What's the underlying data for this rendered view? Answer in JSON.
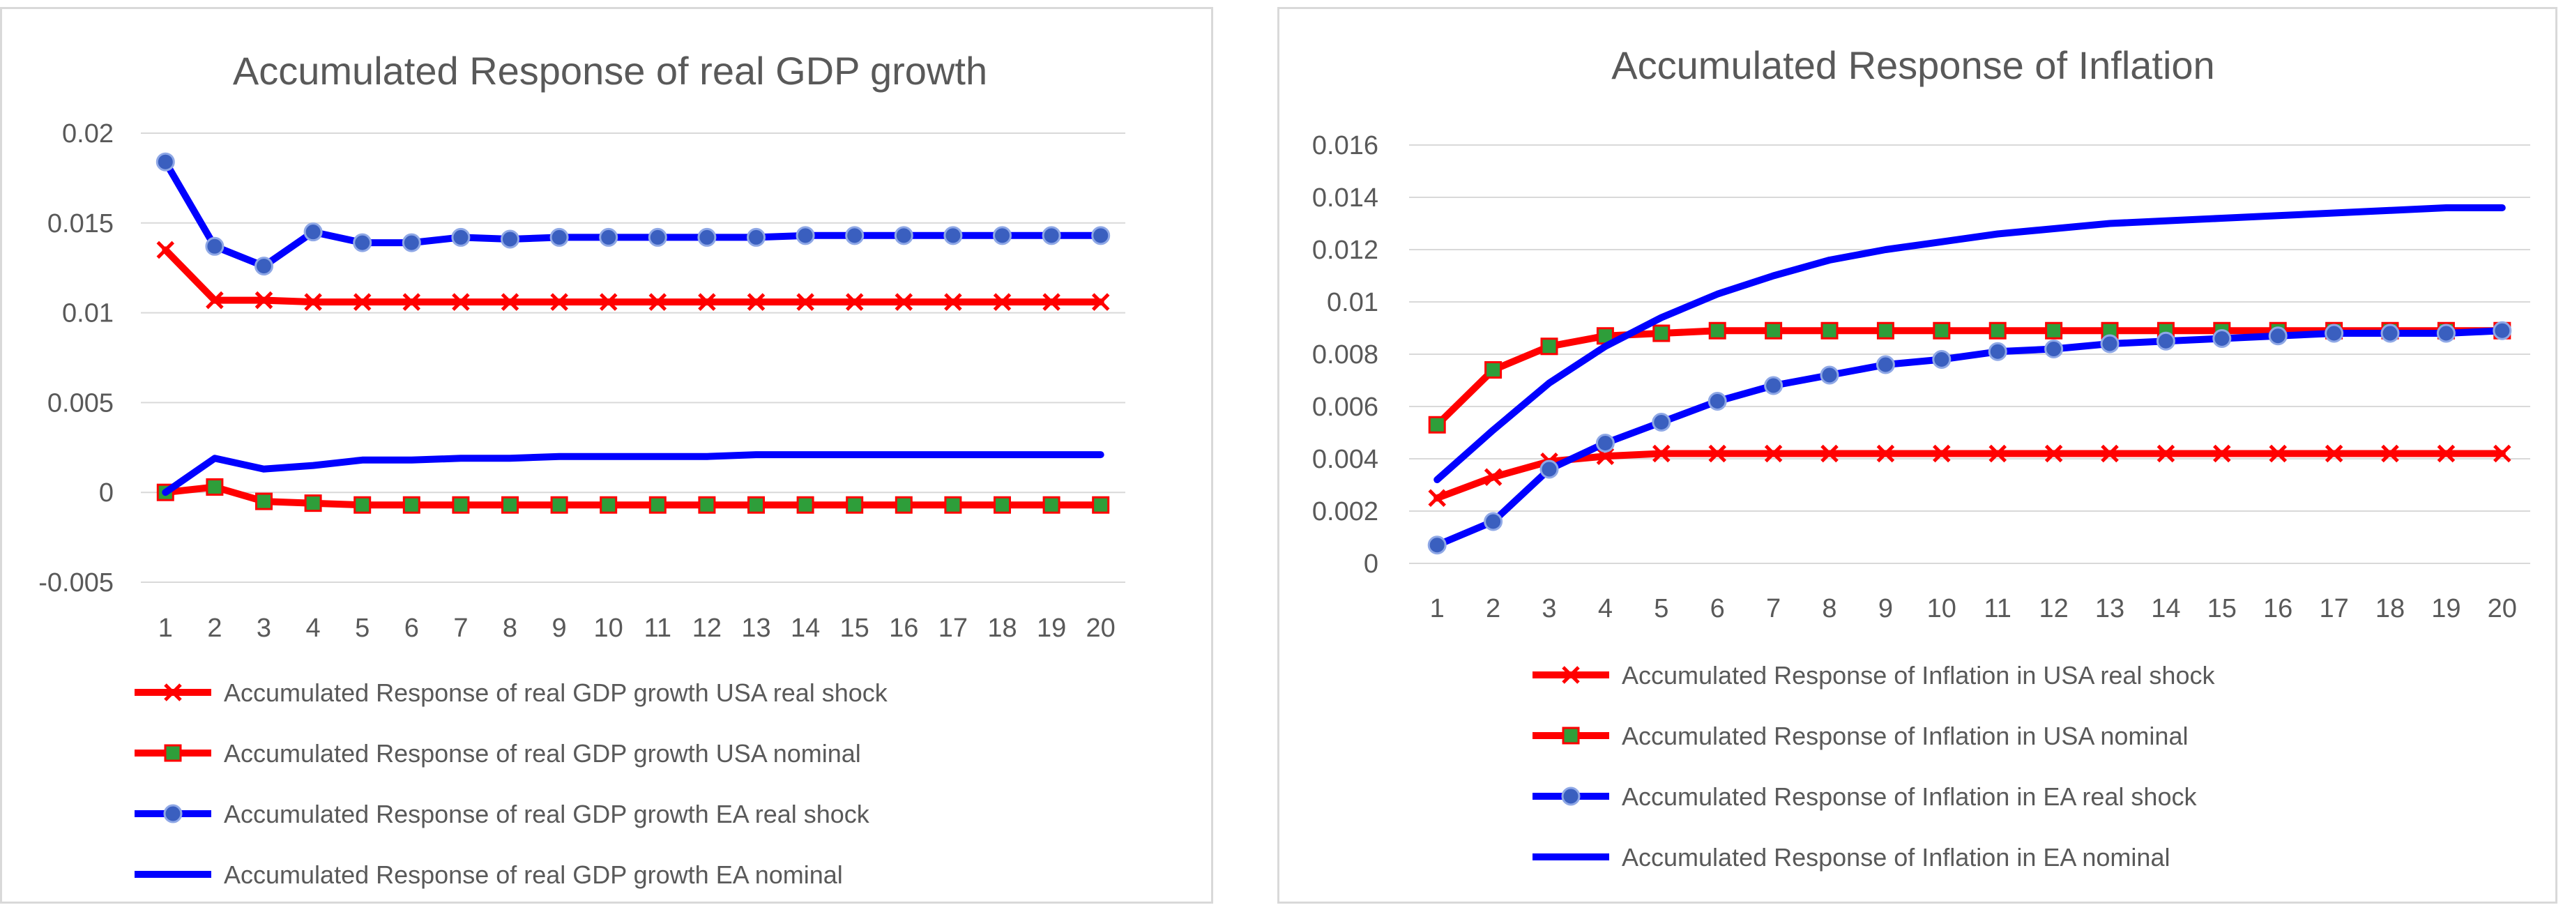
{
  "colors": {
    "red": "#ff0000",
    "blue": "#0000ff",
    "green": "#2e9e3a",
    "grid": "#d9d9d9",
    "text": "#595959"
  },
  "chart_data": [
    {
      "type": "line",
      "title": "Accumulated Response of real GDP growth",
      "x": [
        "1",
        "2",
        "3",
        "4",
        "5",
        "6",
        "7",
        "8",
        "9",
        "10",
        "11",
        "12",
        "13",
        "14",
        "15",
        "16",
        "17",
        "18",
        "19",
        "20"
      ],
      "ylim": [
        -0.005,
        0.02
      ],
      "ytick_values": [
        -0.005,
        0,
        0.005,
        0.01,
        0.015,
        0.02
      ],
      "ytick_labels": [
        "-0.005",
        "0",
        "0.005",
        "0.01",
        "0.015",
        "0.02"
      ],
      "grid": true,
      "legend_position": "bottom",
      "series": [
        {
          "name": "Accumulated Response of real GDP growth USA real shock",
          "color": "#ff0000",
          "marker": "x",
          "values": [
            0.0135,
            0.0107,
            0.0107,
            0.0106,
            0.0106,
            0.0106,
            0.0106,
            0.0106,
            0.0106,
            0.0106,
            0.0106,
            0.0106,
            0.0106,
            0.0106,
            0.0106,
            0.0106,
            0.0106,
            0.0106,
            0.0106,
            0.0106
          ]
        },
        {
          "name": "Accumulated Response of real GDP growth USA nominal",
          "color": "#ff0000",
          "marker": "square",
          "values": [
            0.0,
            0.0003,
            -0.0005,
            -0.0006,
            -0.0007,
            -0.0007,
            -0.0007,
            -0.0007,
            -0.0007,
            -0.0007,
            -0.0007,
            -0.0007,
            -0.0007,
            -0.0007,
            -0.0007,
            -0.0007,
            -0.0007,
            -0.0007,
            -0.0007,
            -0.0007
          ]
        },
        {
          "name": "Accumulated Response of real GDP growth EA real shock",
          "color": "#0000ff",
          "marker": "circle",
          "values": [
            0.0184,
            0.0137,
            0.0126,
            0.0145,
            0.0139,
            0.0139,
            0.0142,
            0.0141,
            0.0142,
            0.0142,
            0.0142,
            0.0142,
            0.0142,
            0.0143,
            0.0143,
            0.0143,
            0.0143,
            0.0143,
            0.0143,
            0.0143
          ]
        },
        {
          "name": "Accumulated Response of real GDP growth EA nominal",
          "color": "#0000ff",
          "marker": "none",
          "values": [
            0.0,
            0.0019,
            0.0013,
            0.0015,
            0.0018,
            0.0018,
            0.0019,
            0.0019,
            0.002,
            0.002,
            0.002,
            0.002,
            0.0021,
            0.0021,
            0.0021,
            0.0021,
            0.0021,
            0.0021,
            0.0021,
            0.0021
          ]
        }
      ]
    },
    {
      "type": "line",
      "title": "Accumulated Response of Inflation",
      "x": [
        "1",
        "2",
        "3",
        "4",
        "5",
        "6",
        "7",
        "8",
        "9",
        "10",
        "11",
        "12",
        "13",
        "14",
        "15",
        "16",
        "17",
        "18",
        "19",
        "20"
      ],
      "ylim": [
        0,
        0.016
      ],
      "ytick_values": [
        0,
        0.002,
        0.004,
        0.006,
        0.008,
        0.01,
        0.012,
        0.014,
        0.016
      ],
      "ytick_labels": [
        "0",
        "0.002",
        "0.004",
        "0.006",
        "0.008",
        "0.01",
        "0.012",
        "0.014",
        "0.016"
      ],
      "grid": true,
      "legend_position": "bottom",
      "series": [
        {
          "name": "Accumulated Response of Inflation in USA real shock",
          "color": "#ff0000",
          "marker": "x",
          "values": [
            0.0025,
            0.0033,
            0.0039,
            0.0041,
            0.0042,
            0.0042,
            0.0042,
            0.0042,
            0.0042,
            0.0042,
            0.0042,
            0.0042,
            0.0042,
            0.0042,
            0.0042,
            0.0042,
            0.0042,
            0.0042,
            0.0042,
            0.0042
          ]
        },
        {
          "name": "Accumulated Response of Inflation in USA nominal",
          "color": "#ff0000",
          "marker": "square",
          "values": [
            0.0053,
            0.0074,
            0.0083,
            0.0087,
            0.0088,
            0.0089,
            0.0089,
            0.0089,
            0.0089,
            0.0089,
            0.0089,
            0.0089,
            0.0089,
            0.0089,
            0.0089,
            0.0089,
            0.0089,
            0.0089,
            0.0089,
            0.0089
          ]
        },
        {
          "name": "Accumulated Response of Inflation in EA real shock",
          "color": "#0000ff",
          "marker": "circle",
          "values": [
            0.0007,
            0.0016,
            0.0036,
            0.0046,
            0.0054,
            0.0062,
            0.0068,
            0.0072,
            0.0076,
            0.0078,
            0.0081,
            0.0082,
            0.0084,
            0.0085,
            0.0086,
            0.0087,
            0.0088,
            0.0088,
            0.0088,
            0.0089
          ]
        },
        {
          "name": "Accumulated Response of Inflation in EA nominal",
          "color": "#0000ff",
          "marker": "none",
          "values": [
            0.0032,
            0.0051,
            0.0069,
            0.0083,
            0.0094,
            0.0103,
            0.011,
            0.0116,
            0.012,
            0.0123,
            0.0126,
            0.0128,
            0.013,
            0.0131,
            0.0132,
            0.0133,
            0.0134,
            0.0135,
            0.0136,
            0.0136
          ]
        }
      ]
    }
  ]
}
